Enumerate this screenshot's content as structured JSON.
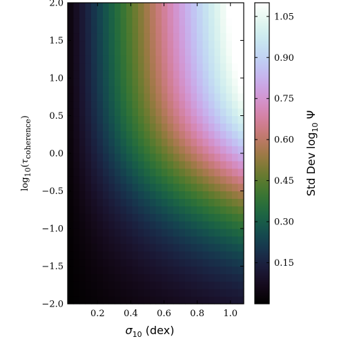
{
  "chart_data": {
    "type": "heatmap",
    "colormap": "cubehelix",
    "xlabel": {
      "main": "σ",
      "sub": "10",
      "rest": " (dex)"
    },
    "ylabel": {
      "prefix": "log",
      "sub": "10",
      "open": "(",
      "tau": "τ",
      "tausub": "coherence",
      "close": ")"
    },
    "colorbar_label": {
      "main": "Std Dev log",
      "sub": "10",
      "psi": " Ψ"
    },
    "x_range": [
      0.02,
      1.08
    ],
    "y_range": [
      -2.0,
      2.0
    ],
    "x_ticks": [
      "0.2",
      "0.4",
      "0.6",
      "0.8",
      "1.0"
    ],
    "x_tick_values": [
      0.2,
      0.4,
      0.6,
      0.8,
      1.0
    ],
    "y_ticks": [
      "−2.0",
      "−1.5",
      "−1.0",
      "−0.5",
      "0.0",
      "0.5",
      "1.0",
      "1.5",
      "2.0"
    ],
    "y_tick_values": [
      -2.0,
      -1.5,
      -1.0,
      -0.5,
      0.0,
      0.5,
      1.0,
      1.5,
      2.0
    ],
    "color_range": [
      0.0,
      1.1
    ],
    "colorbar_ticks": [
      "0.15",
      "0.30",
      "0.45",
      "0.60",
      "0.75",
      "0.90",
      "1.05"
    ],
    "colorbar_tick_values": [
      0.15,
      0.3,
      0.45,
      0.6,
      0.75,
      0.9,
      1.05
    ],
    "grid_shape": {
      "nx": 30,
      "ny": 40
    },
    "grid": false
  }
}
